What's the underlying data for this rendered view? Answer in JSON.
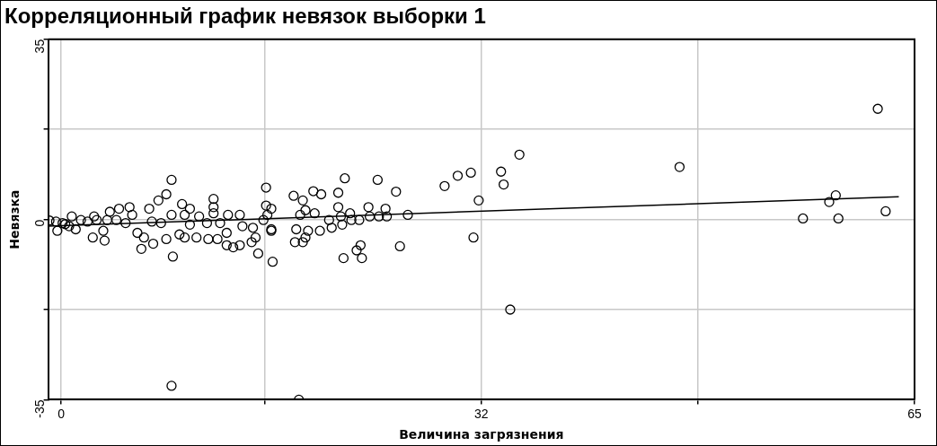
{
  "chart_data": {
    "type": "scatter",
    "title": "Корреляционный график невязок выборки 1",
    "xlabel": "Величина загрязнения",
    "ylabel": "Невязка",
    "xlim": [
      -1,
      65
    ],
    "xticks": [
      0,
      {
        "value": 15.5,
        "label": null
      },
      32,
      {
        "value": 48.5,
        "label": null
      },
      65
    ],
    "ylim": [
      -35,
      35
    ],
    "yticks": [
      -35,
      {
        "value": -17.5,
        "label": null
      },
      0,
      {
        "value": 17.5,
        "label": null
      },
      35
    ],
    "grid": true,
    "legend": false,
    "marker": "circle",
    "series": [
      {
        "color": "#000000",
        "x": [
          -0.9,
          -0.4,
          -0.3,
          0.1,
          0.3,
          0.8,
          0.6,
          1.1,
          1.5,
          2.0,
          2.4,
          2.5,
          2.7,
          3.3,
          3.2,
          3.5,
          3.7,
          4.2,
          4.4,
          4.9,
          5.2,
          5.4,
          5.8,
          6.1,
          6.3,
          6.7,
          7.0,
          6.9,
          7.4,
          7.6,
          8.0,
          8.0,
          8.4,
          8.4,
          8.5,
          9.0,
          9.2,
          9.4,
          9.4,
          9.8,
          9.8,
          10.3,
          10.5,
          11.1,
          11.2,
          11.6,
          11.6,
          11.6,
          11.9,
          12.1,
          12.6,
          12.7,
          12.6,
          13.1,
          13.6,
          13.6,
          13.8,
          14.5,
          14.6,
          14.8,
          15.0,
          15.6,
          15.6,
          15.7,
          16.0,
          16.1,
          16.0,
          15.4,
          16.0,
          17.7,
          17.9,
          17.8,
          18.2,
          18.4,
          18.6,
          18.8,
          18.6,
          18.4,
          19.2,
          19.3,
          19.8,
          19.7,
          20.4,
          20.6,
          21.1,
          21.1,
          21.3,
          21.4,
          21.6,
          22.0,
          22.1,
          22.7,
          22.8,
          22.5,
          22.9,
          21.5,
          23.4,
          23.5,
          24.1,
          24.2,
          24.7,
          24.8,
          25.5,
          25.8,
          26.4,
          29.2,
          30.2,
          31.2,
          31.8,
          31.4,
          33.5,
          33.7,
          34.9,
          34.2,
          47.1,
          56.5,
          58.5,
          59.0,
          59.2,
          62.2,
          62.8,
          8.4,
          18.1
        ],
        "values": [
          -0.2,
          -0.4,
          -2.2,
          -0.7,
          -0.9,
          0.6,
          -1.3,
          -1.9,
          -0.1,
          -0.4,
          -3.5,
          0.6,
          -0.1,
          -4.1,
          -2.2,
          -0.1,
          1.5,
          -0.1,
          2.1,
          -0.7,
          2.4,
          0.9,
          -2.6,
          -5.7,
          -3.5,
          2.1,
          -4.7,
          -0.4,
          3.7,
          -0.7,
          4.9,
          -3.8,
          7.7,
          0.9,
          -7.2,
          -2.9,
          3.0,
          0.9,
          -3.5,
          2.1,
          -1.0,
          -3.5,
          0.6,
          -0.7,
          -3.8,
          4.0,
          2.4,
          1.2,
          -3.8,
          -0.7,
          -2.6,
          0.9,
          -5.0,
          -5.4,
          0.9,
          -5.0,
          -1.3,
          -4.4,
          -1.6,
          -3.5,
          -6.6,
          6.2,
          2.7,
          0.9,
          -2.2,
          -8.2,
          2.1,
          -0.1,
          -1.9,
          4.6,
          -1.9,
          -4.4,
          0.9,
          3.7,
          1.8,
          -2.2,
          -3.5,
          -4.4,
          5.5,
          1.2,
          4.9,
          -2.2,
          -0.1,
          -1.6,
          5.2,
          2.4,
          0.6,
          -1.0,
          8.0,
          1.2,
          -0.1,
          -0.1,
          -5.0,
          -6.0,
          -7.5,
          -7.5,
          2.4,
          0.6,
          7.7,
          0.6,
          2.1,
          0.6,
          5.4,
          -5.2,
          0.9,
          6.5,
          8.5,
          9.1,
          3.7,
          -3.5,
          9.3,
          6.8,
          12.6,
          -17.5,
          10.2,
          0.2,
          3.4,
          4.7,
          0.2,
          21.5,
          1.6,
          -32.3,
          -35
        ]
      },
      {
        "color": "#000000",
        "type": "line",
        "marker": "none",
        "x": [
          -1,
          63.8
        ],
        "values": [
          -1.3,
          4.4
        ]
      }
    ]
  }
}
